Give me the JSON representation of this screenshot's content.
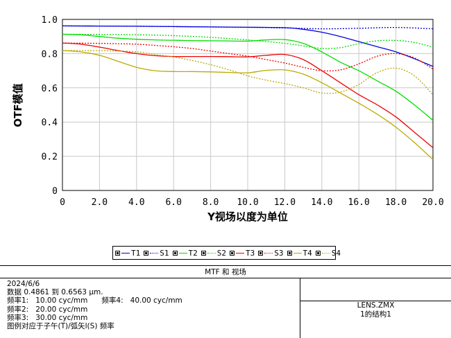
{
  "chart_data": {
    "type": "line",
    "title": "",
    "xlabel": "Y视场以度为单位",
    "ylabel": "OTF模值",
    "xlim": [
      0,
      20
    ],
    "ylim": [
      0,
      1
    ],
    "xticks": [
      "0",
      "2.0",
      "4.0",
      "6.0",
      "8.0",
      "10.0",
      "12.0",
      "14.0",
      "16.0",
      "18.0",
      "20.0"
    ],
    "yticks": [
      "0",
      "0.2",
      "0.4",
      "0.6",
      "0.8",
      "1.0"
    ],
    "grid": true,
    "legend_position": "bottom",
    "series": [
      {
        "name": "T1",
        "color": "#0000dd",
        "style": "solid",
        "x": [
          0,
          2,
          4,
          6,
          8,
          10,
          12,
          13,
          14,
          15,
          16,
          17,
          18,
          19,
          20
        ],
        "y": [
          0.962,
          0.961,
          0.96,
          0.958,
          0.956,
          0.954,
          0.952,
          0.942,
          0.925,
          0.9,
          0.87,
          0.84,
          0.81,
          0.77,
          0.725
        ]
      },
      {
        "name": "S1",
        "color": "#0000dd",
        "style": "dot",
        "x": [
          0,
          2,
          4,
          6,
          8,
          10,
          12,
          14,
          16,
          18,
          20
        ],
        "y": [
          0.962,
          0.961,
          0.96,
          0.958,
          0.956,
          0.954,
          0.95,
          0.945,
          0.948,
          0.953,
          0.945
        ]
      },
      {
        "name": "T2",
        "color": "#00dd00",
        "style": "solid",
        "x": [
          0,
          1,
          2,
          3,
          4,
          5,
          6,
          7,
          8,
          9,
          10,
          11,
          12,
          13,
          14,
          15,
          16,
          17,
          18,
          19,
          20
        ],
        "y": [
          0.913,
          0.91,
          0.9,
          0.89,
          0.884,
          0.88,
          0.878,
          0.876,
          0.875,
          0.874,
          0.873,
          0.88,
          0.882,
          0.86,
          0.81,
          0.75,
          0.7,
          0.64,
          0.58,
          0.5,
          0.41
        ]
      },
      {
        "name": "S2",
        "color": "#00dd00",
        "style": "dot",
        "x": [
          0,
          2,
          4,
          6,
          8,
          10,
          12,
          13,
          14,
          15,
          16,
          17,
          18,
          19,
          20
        ],
        "y": [
          0.913,
          0.912,
          0.91,
          0.905,
          0.895,
          0.88,
          0.86,
          0.845,
          0.83,
          0.835,
          0.858,
          0.875,
          0.877,
          0.865,
          0.838
        ]
      },
      {
        "name": "T3",
        "color": "#ee0000",
        "style": "solid",
        "x": [
          0,
          1,
          2,
          3,
          4,
          5,
          6,
          7,
          8,
          9,
          10,
          11,
          12,
          13,
          14,
          15,
          16,
          17,
          18,
          19,
          20
        ],
        "y": [
          0.862,
          0.855,
          0.838,
          0.818,
          0.8,
          0.788,
          0.783,
          0.783,
          0.783,
          0.782,
          0.781,
          0.79,
          0.795,
          0.765,
          0.7,
          0.63,
          0.56,
          0.5,
          0.43,
          0.34,
          0.25
        ]
      },
      {
        "name": "S3",
        "color": "#ee0000",
        "style": "dot",
        "x": [
          0,
          1,
          2,
          3,
          4,
          5,
          6,
          7,
          8,
          9,
          10,
          11,
          12,
          13,
          14,
          15,
          16,
          17,
          18,
          19,
          20
        ],
        "y": [
          0.862,
          0.861,
          0.86,
          0.858,
          0.855,
          0.848,
          0.84,
          0.83,
          0.815,
          0.8,
          0.785,
          0.765,
          0.745,
          0.72,
          0.7,
          0.705,
          0.74,
          0.785,
          0.8,
          0.775,
          0.71
        ]
      },
      {
        "name": "T4",
        "color": "#bbaa00",
        "style": "solid",
        "x": [
          0,
          1,
          2,
          3,
          4,
          5,
          6,
          7,
          8,
          9,
          10,
          11,
          12,
          13,
          14,
          15,
          16,
          17,
          18,
          19,
          20
        ],
        "y": [
          0.818,
          0.81,
          0.79,
          0.755,
          0.72,
          0.7,
          0.695,
          0.695,
          0.693,
          0.69,
          0.688,
          0.702,
          0.705,
          0.68,
          0.63,
          0.57,
          0.51,
          0.445,
          0.37,
          0.28,
          0.18
        ]
      },
      {
        "name": "S4",
        "color": "#bbaa00",
        "style": "dot",
        "x": [
          0,
          1,
          2,
          3,
          4,
          5,
          6,
          7,
          8,
          9,
          10,
          11,
          12,
          13,
          14,
          15,
          16,
          17,
          18,
          19,
          20
        ],
        "y": [
          0.818,
          0.818,
          0.817,
          0.815,
          0.81,
          0.795,
          0.78,
          0.76,
          0.735,
          0.705,
          0.67,
          0.645,
          0.625,
          0.6,
          0.57,
          0.575,
          0.62,
          0.69,
          0.715,
          0.67,
          0.56
        ]
      }
    ]
  },
  "legend": [
    "T1",
    "S1",
    "T2",
    "S2",
    "T3",
    "S3",
    "T4",
    "S4"
  ],
  "info": {
    "title": "MTF 和 视场",
    "date": "2024/6/6",
    "lines": [
      "数据 0.4861 到 0.6563 µm.",
      "频率1:   10.00 cyc/mm      频率4:   40.00 cyc/mm",
      "频率2:   20.00 cyc/mm",
      "频率3:   30.00 cyc/mm",
      "图例对应于子午(T)/弧矢l(S) 频率"
    ],
    "file": "LENS.ZMX",
    "config": "1的结构1"
  }
}
